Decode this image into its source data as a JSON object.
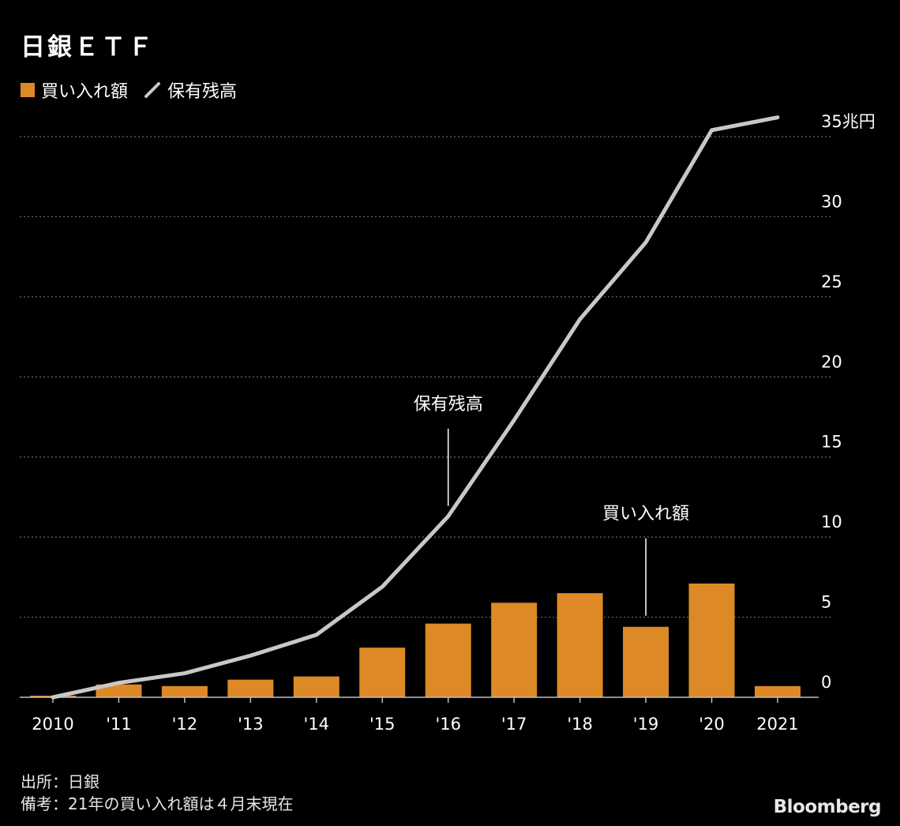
{
  "title": "日銀ＥＴＦ",
  "legend": {
    "bar_label": "買い入れ額",
    "line_label": "保有残高"
  },
  "colors": {
    "bar": "#dd8a26",
    "line": "#c8c8c8",
    "grid": "#6a6a6a",
    "text": "#ffffff",
    "background": "#000000"
  },
  "footnotes": {
    "source": "出所：日銀",
    "remark": "備考：21年の買い入れ額は４月末現在"
  },
  "brand": "Bloomberg",
  "chart_data": {
    "type": "bar",
    "categories": [
      "2010",
      "'11",
      "'12",
      "'13",
      "'14",
      "'15",
      "'16",
      "'17",
      "'18",
      "'19",
      "'20",
      "2021"
    ],
    "series": [
      {
        "name": "買い入れ額",
        "type": "bar",
        "values": [
          0.1,
          0.8,
          0.7,
          1.1,
          1.3,
          3.1,
          4.6,
          5.9,
          6.5,
          4.4,
          7.1,
          0.7
        ]
      },
      {
        "name": "保有残高",
        "type": "line",
        "values": [
          0.0,
          0.9,
          1.5,
          2.6,
          3.9,
          6.9,
          11.3,
          17.3,
          23.6,
          28.4,
          35.4,
          36.2
        ]
      }
    ],
    "ylim": [
      0,
      35
    ],
    "yticks": [
      {
        "value": 0,
        "label": "0"
      },
      {
        "value": 5,
        "label": "5"
      },
      {
        "value": 10,
        "label": "10"
      },
      {
        "value": 15,
        "label": "15"
      },
      {
        "value": 20,
        "label": "20"
      },
      {
        "value": 25,
        "label": "25"
      },
      {
        "value": 30,
        "label": "30"
      },
      {
        "value": 35,
        "label": "35兆円"
      }
    ],
    "grid": true,
    "legend_position": "top-left",
    "annotations": [
      {
        "text": "保有残高",
        "category_index": 6,
        "series": "保有残高"
      },
      {
        "text": "買い入れ額",
        "category_index": 9,
        "series": "買い入れ額"
      }
    ]
  }
}
